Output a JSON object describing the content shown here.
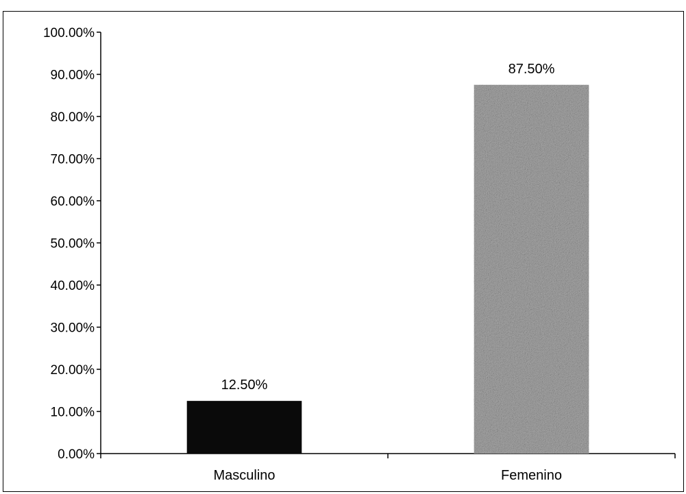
{
  "chart_data": {
    "type": "bar",
    "categories": [
      "Masculino",
      "Femenino"
    ],
    "values": [
      12.5,
      87.5
    ],
    "data_labels": [
      "12.50%",
      "87.50%"
    ],
    "title": "",
    "xlabel": "",
    "ylabel": "",
    "ylim": [
      0,
      100
    ],
    "yticks": [
      0,
      10,
      20,
      30,
      40,
      50,
      60,
      70,
      80,
      90,
      100
    ],
    "ytick_labels": [
      "0.00%",
      "10.00%",
      "20.00%",
      "30.00%",
      "40.00%",
      "50.00%",
      "60.00%",
      "70.00%",
      "80.00%",
      "90.00%",
      "100.00%"
    ],
    "grid": false,
    "legend": "none",
    "colors": [
      "#0a0a0a",
      "#a8a8a8"
    ],
    "bar_fill_styles": [
      "solid",
      "speckled"
    ]
  }
}
